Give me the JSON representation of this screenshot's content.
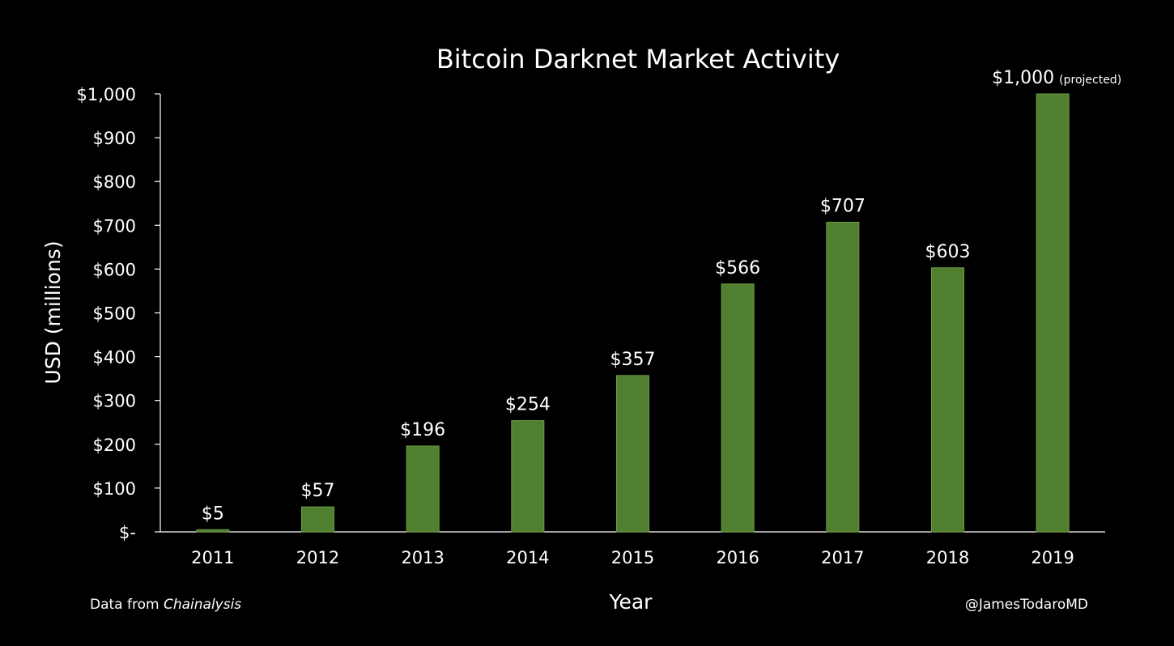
{
  "colors": {
    "background": "#000000",
    "bar": "#4f7f2f",
    "bar_edge": "#6e9e46",
    "text": "#ffffff",
    "axis": "#ffffff"
  },
  "footer": {
    "source_prefix": "Data from",
    "source_name": "Chainalysis",
    "credit": "@JamesTodaroMD"
  },
  "chart_data": {
    "type": "bar",
    "title": "Bitcoin Darknet Market Activity",
    "xlabel": "Year",
    "ylabel": "USD (millions)",
    "categories": [
      "2011",
      "2012",
      "2013",
      "2014",
      "2015",
      "2016",
      "2017",
      "2018",
      "2019"
    ],
    "values": [
      5,
      57,
      196,
      254,
      357,
      566,
      707,
      603,
      1000
    ],
    "data_labels": [
      "$5",
      "$57",
      "$196",
      "$254",
      "$357",
      "$566",
      "$707",
      "$603",
      "$1,000"
    ],
    "data_label_notes": [
      "",
      "",
      "",
      "",
      "",
      "",
      "",
      "",
      "(projected)"
    ],
    "ylim": [
      0,
      1000
    ],
    "yticks": [
      0,
      100,
      200,
      300,
      400,
      500,
      600,
      700,
      800,
      900,
      1000
    ],
    "ytick_labels": [
      "$-",
      "$100",
      "$200",
      "$300",
      "$400",
      "$500",
      "$600",
      "$700",
      "$800",
      "$900",
      "$1,000"
    ],
    "grid": false,
    "legend": "none"
  }
}
